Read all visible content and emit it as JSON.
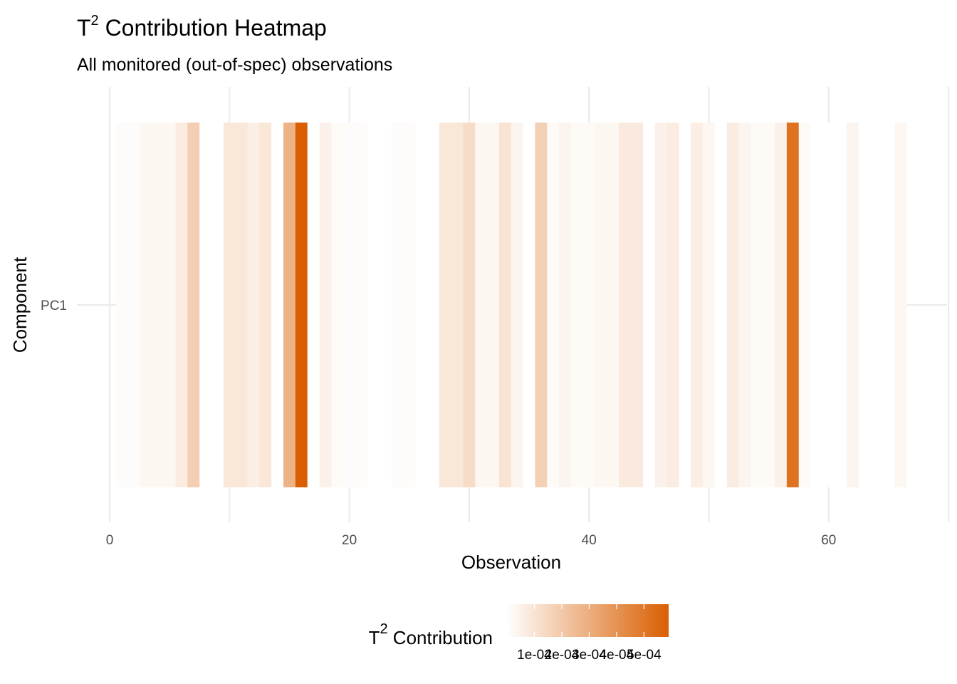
{
  "chart_data": {
    "type": "heatmap",
    "title_base": "T",
    "title_sup": "2",
    "title_rest": " Contribution Heatmap",
    "subtitle": "All monitored (out-of-spec) observations",
    "xlabel": "Observation",
    "ylabel": "Component",
    "xlim": [
      0,
      70
    ],
    "x_ticks": [
      0,
      20,
      40,
      60
    ],
    "x_tick_labels": [
      "0",
      "20",
      "40",
      "60"
    ],
    "y_categories": [
      "PC1"
    ],
    "grid": true,
    "legend": {
      "position": "bottom",
      "title_base": "T",
      "title_sup": "2",
      "title_rest": " Contribution",
      "range": [
        0,
        0.00059
      ],
      "ticks": [
        0.0001,
        0.0002,
        0.0003,
        0.0004,
        0.0005
      ],
      "tick_labels": [
        "1e-04",
        "2e-04",
        "3e-04",
        "4e-04",
        "5e-04"
      ],
      "color_low": "#ffffff",
      "color_high": "#d95f02"
    },
    "x": [
      1,
      2,
      3,
      4,
      5,
      6,
      7,
      8,
      9,
      10,
      11,
      12,
      13,
      14,
      15,
      16,
      17,
      18,
      19,
      20,
      21,
      22,
      23,
      24,
      25,
      26,
      27,
      28,
      29,
      30,
      31,
      32,
      33,
      34,
      35,
      36,
      37,
      38,
      39,
      40,
      41,
      42,
      43,
      44,
      45,
      46,
      47,
      48,
      49,
      50,
      51,
      52,
      53,
      54,
      55,
      56,
      57,
      58,
      59,
      60,
      61,
      62,
      63,
      64,
      65,
      66
    ],
    "values": [
      1e-05,
      1e-05,
      3e-05,
      3e-05,
      3e-05,
      7e-05,
      0.00018,
      0.0,
      0.0,
      9e-05,
      9e-05,
      6e-05,
      9e-05,
      0.0,
      0.00028,
      0.00059,
      0.0,
      5e-05,
      2e-05,
      1e-05,
      1e-05,
      0.0,
      0.0,
      1e-05,
      1e-05,
      0.0,
      0.0,
      9e-05,
      9e-05,
      0.00013,
      3e-05,
      3e-05,
      0.0001,
      4e-05,
      0.0,
      0.00017,
      2e-05,
      4e-05,
      2e-05,
      2e-05,
      3e-05,
      3e-05,
      8e-05,
      8e-05,
      0.0,
      5e-05,
      7e-05,
      0.0,
      6e-05,
      3e-05,
      0.0,
      7e-05,
      4e-05,
      2e-05,
      2e-05,
      5e-05,
      0.00052,
      2e-05,
      0.0,
      0.0,
      0.0,
      4e-05,
      0.0,
      0.0,
      0.0,
      3e-05
    ]
  }
}
